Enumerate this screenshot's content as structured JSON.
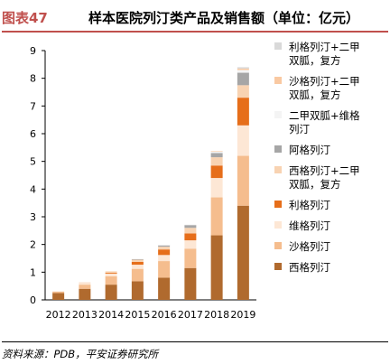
{
  "header": {
    "figure_label": "图表47",
    "title": "样本医院列汀类产品及销售额（单位：亿元）"
  },
  "footer": {
    "source": "资料来源：PDB，平安证券研究所"
  },
  "chart_data": {
    "type": "bar",
    "stacked": true,
    "categories": [
      "2012",
      "2013",
      "2014",
      "2015",
      "2016",
      "2017",
      "2018",
      "2019"
    ],
    "ylim": [
      0,
      9
    ],
    "yticks": [
      0,
      1,
      2,
      3,
      4,
      5,
      6,
      7,
      8,
      9
    ],
    "grid": false,
    "legend_position": "right",
    "series": [
      {
        "name": "西格列汀",
        "color": "#b06a2e",
        "values": [
          0.25,
          0.4,
          0.55,
          0.67,
          0.8,
          1.15,
          2.33,
          3.4
        ]
      },
      {
        "name": "沙格列汀",
        "color": "#f5bd8e",
        "values": [
          0.05,
          0.15,
          0.3,
          0.45,
          0.6,
          0.7,
          1.37,
          1.8
        ]
      },
      {
        "name": "维格列汀",
        "color": "#fde7d5",
        "values": [
          0.0,
          0.06,
          0.1,
          0.15,
          0.22,
          0.3,
          0.7,
          1.1
        ]
      },
      {
        "name": "利格列汀",
        "color": "#e66e1a",
        "values": [
          0.0,
          0.0,
          0.03,
          0.1,
          0.2,
          0.25,
          0.45,
          1.0
        ]
      },
      {
        "name": "西格列汀+二甲双胍，复方",
        "color": "#f8d3b2",
        "values": [
          0.0,
          0.02,
          0.05,
          0.08,
          0.1,
          0.2,
          0.3,
          0.45
        ]
      },
      {
        "name": "阿格列汀",
        "color": "#a6a6a6",
        "values": [
          0.0,
          0.0,
          0.0,
          0.02,
          0.05,
          0.1,
          0.15,
          0.45
        ]
      },
      {
        "name": "二甲双胍+维格列汀",
        "color": "#f4f4f4",
        "values": [
          0.0,
          0.0,
          0.0,
          0.0,
          0.01,
          0.02,
          0.05,
          0.1
        ]
      },
      {
        "name": "沙格列汀+二甲双胍，复方",
        "color": "#f9c9a2",
        "values": [
          0.0,
          0.0,
          0.0,
          0.0,
          0.0,
          0.0,
          0.02,
          0.05
        ]
      },
      {
        "name": "利格列汀+二甲双胍，复方",
        "color": "#d9d9d9",
        "values": [
          0.0,
          0.0,
          0.0,
          0.0,
          0.0,
          0.0,
          0.0,
          0.05
        ]
      }
    ],
    "legend_order": [
      8,
      7,
      6,
      5,
      4,
      3,
      2,
      1,
      0
    ]
  }
}
